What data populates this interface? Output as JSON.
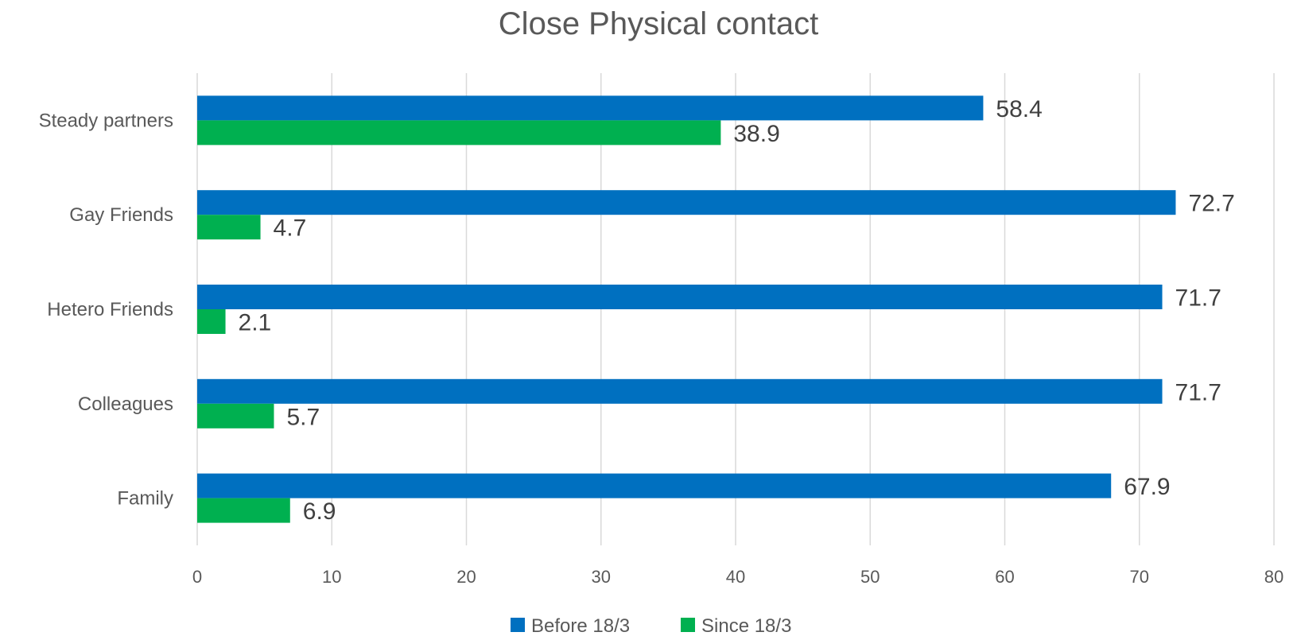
{
  "chart_data": {
    "type": "bar",
    "orientation": "horizontal",
    "title": "Close Physical contact",
    "categories": [
      "Steady partners",
      "Gay Friends",
      "Hetero Friends",
      "Colleagues",
      "Family"
    ],
    "series": [
      {
        "name": "Before 18/3",
        "color": "#0070c0",
        "values": [
          58.4,
          72.7,
          71.7,
          71.7,
          67.9
        ],
        "labels": [
          "58.4",
          "72.7",
          "71.7",
          "71.7",
          "67.9"
        ]
      },
      {
        "name": "Since 18/3",
        "color": "#00b050",
        "values": [
          38.9,
          4.7,
          2.1,
          5.7,
          6.9
        ],
        "labels": [
          "38.9",
          "4.7",
          "2.1",
          "5.7",
          "6.9"
        ]
      }
    ],
    "xlim": [
      0,
      80
    ],
    "xticks": [
      "0",
      "10",
      "20",
      "30",
      "40",
      "50",
      "60",
      "70",
      "80"
    ],
    "grid": true,
    "legend": "bottom",
    "xlabel": "",
    "ylabel": ""
  }
}
